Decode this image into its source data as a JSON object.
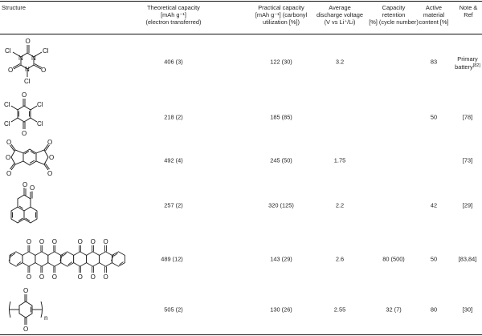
{
  "table": {
    "headers": {
      "structure": [
        "Structure"
      ],
      "theoretical": [
        "Theoretical capacity",
        "[mAh g⁻¹]",
        "(electron transferred)"
      ],
      "practical": [
        "Practical capacity",
        "[mAh g⁻¹] (carbonyl",
        "utilization [%])"
      ],
      "voltage": [
        "Average",
        "discharge voltage",
        "(V vs Li⁺/Li)"
      ],
      "retention": [
        "Capacity",
        "retention",
        "[%] (cycle number)"
      ],
      "content": [
        "Active",
        "material",
        "content [%]"
      ],
      "ref": [
        "Note &",
        "Ref"
      ]
    },
    "rows": [
      {
        "structure": "trichloroisocyanuric-acid",
        "atoms": {
          "cl": "Cl",
          "n": "N",
          "o": "O"
        },
        "theoretical": "406 (3)",
        "practical": "122 (30)",
        "voltage": "3.2",
        "retention": "",
        "content": "83",
        "note": "Primary",
        "note2": "battery",
        "ref": "[82]"
      },
      {
        "structure": "chloranil",
        "atoms": {
          "cl": "Cl",
          "o": "O"
        },
        "theoretical": "218 (2)",
        "practical": "185 (85)",
        "voltage": "",
        "retention": "",
        "content": "50",
        "ref": "[78]"
      },
      {
        "structure": "pyromellitic-dianhydride",
        "atoms": {
          "o": "O"
        },
        "theoretical": "492 (4)",
        "practical": "245 (50)",
        "voltage": "1.75",
        "retention": "",
        "content": "",
        "ref": "[73]"
      },
      {
        "structure": "phenanthrenequinone",
        "atoms": {
          "o": "O"
        },
        "theoretical": "257 (2)",
        "practical": "320 (125)",
        "voltage": "2.2",
        "retention": "",
        "content": "42",
        "ref": "[29]"
      },
      {
        "structure": "pentacenetetrone-dimer",
        "atoms": {
          "o": "O"
        },
        "theoretical": "489 (12)",
        "practical": "143 (29)",
        "voltage": "2.6",
        "retention": "80 (500)",
        "content": "50",
        "ref": "[83,84]"
      },
      {
        "structure": "polyquinone",
        "atoms": {
          "o": "O",
          "n": "n"
        },
        "theoretical": "505 (2)",
        "practical": "130 (26)",
        "voltage": "2.55",
        "retention": "32 (7)",
        "content": "80",
        "ref": "[30]"
      }
    ]
  }
}
